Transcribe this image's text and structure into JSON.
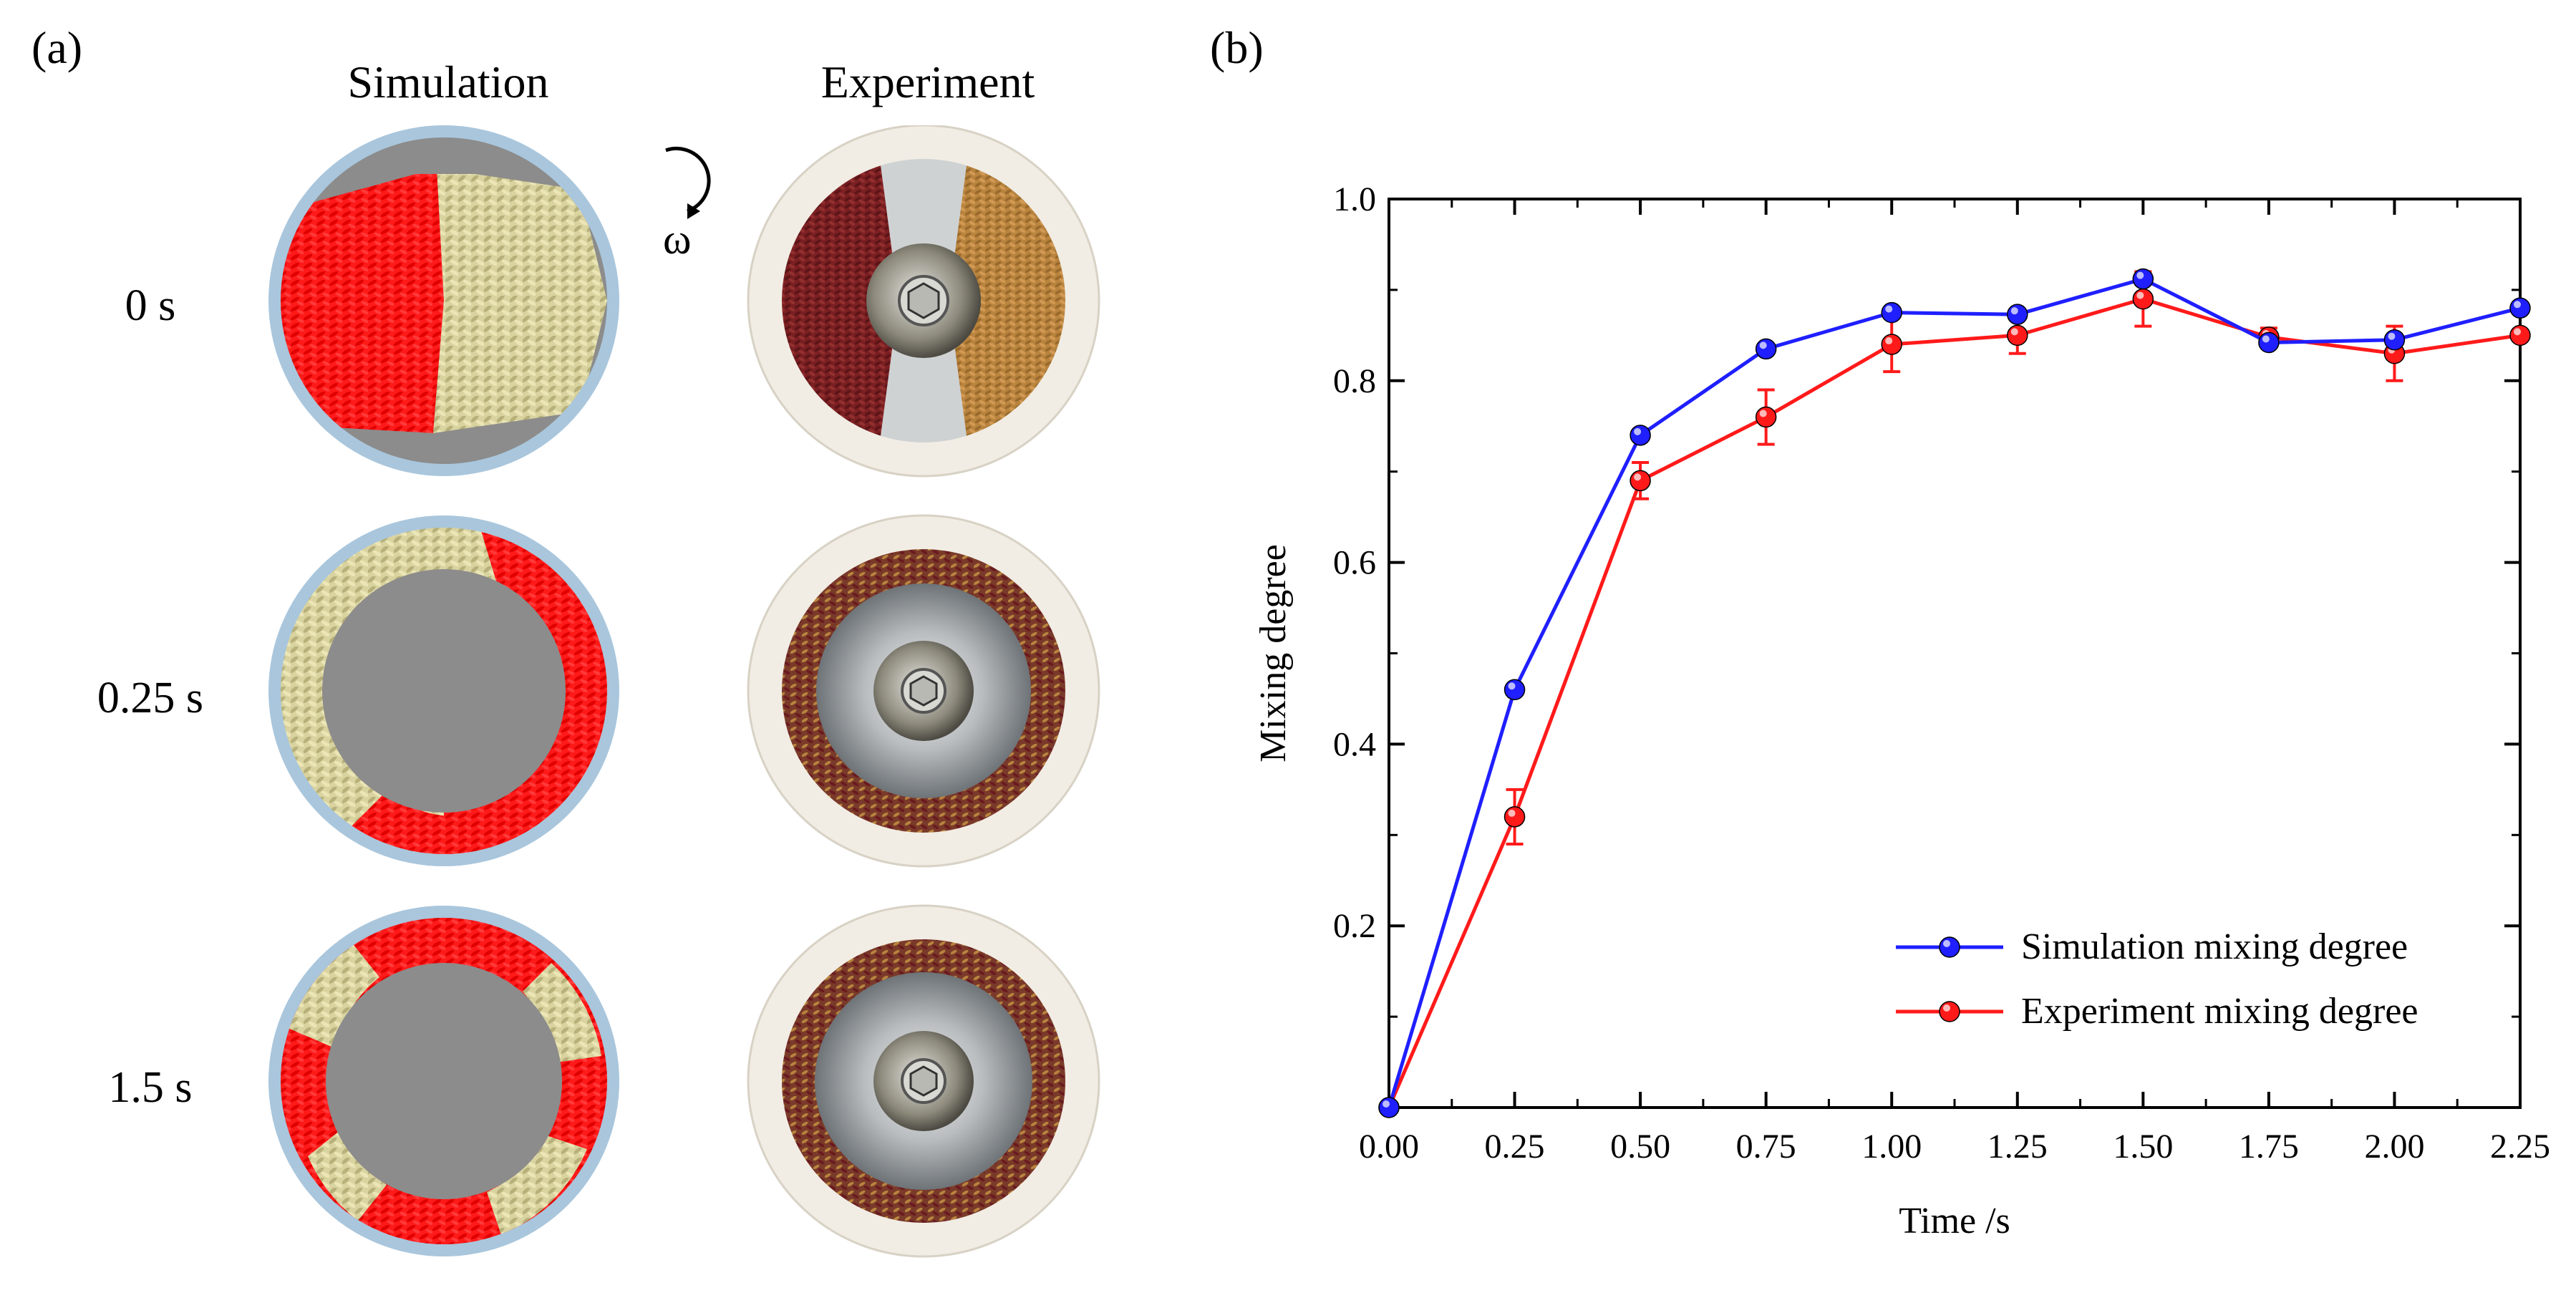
{
  "panel_a": {
    "label": "(a)",
    "col_simulation": "Simulation",
    "col_experiment": "Experiment",
    "rotation_symbol": "ω",
    "rows": [
      "0 s",
      "0.25 s",
      "1.5 s"
    ],
    "colors": {
      "sim_rim": "#a9c6dc",
      "sim_floor": "#8c8c8c",
      "red_grain": "#ff1a1a",
      "beige_grain": "#d9d3a0",
      "exp_rim": "#f1ede4",
      "exp_red_rice": "#7a1f22",
      "exp_brown_rice": "#b9843e",
      "exp_steel": "#bfc3c6"
    }
  },
  "panel_b": {
    "label": "(b)"
  },
  "chart_data": {
    "type": "line",
    "xlabel": "Time /s",
    "ylabel": "Mixing degree",
    "xlim": [
      0,
      2.25
    ],
    "ylim": [
      0,
      1.0
    ],
    "xticks": [
      "0.00",
      "0.25",
      "0.50",
      "0.75",
      "1.00",
      "1.25",
      "1.50",
      "1.75",
      "2.00",
      "2.25"
    ],
    "yticks": [
      "0.2",
      "0.4",
      "0.6",
      "0.8",
      "1.0"
    ],
    "x": [
      0.0,
      0.25,
      0.5,
      0.75,
      1.0,
      1.25,
      1.5,
      1.75,
      2.0,
      2.25
    ],
    "series": [
      {
        "name": "Simulation mixing degree",
        "color": "#1f1fff",
        "values": [
          0.0,
          0.46,
          0.74,
          0.835,
          0.875,
          0.873,
          0.912,
          0.842,
          0.845,
          0.88
        ]
      },
      {
        "name": "Experiment mixing degree",
        "color": "#ff1a1a",
        "values": [
          0.0,
          0.32,
          0.69,
          0.76,
          0.84,
          0.85,
          0.89,
          0.848,
          0.83,
          0.85
        ],
        "error": [
          0.0,
          0.03,
          0.02,
          0.03,
          0.03,
          0.02,
          0.03,
          0.01,
          0.03,
          0.0
        ]
      }
    ],
    "legend_position": "bottom-right",
    "grid": false
  }
}
